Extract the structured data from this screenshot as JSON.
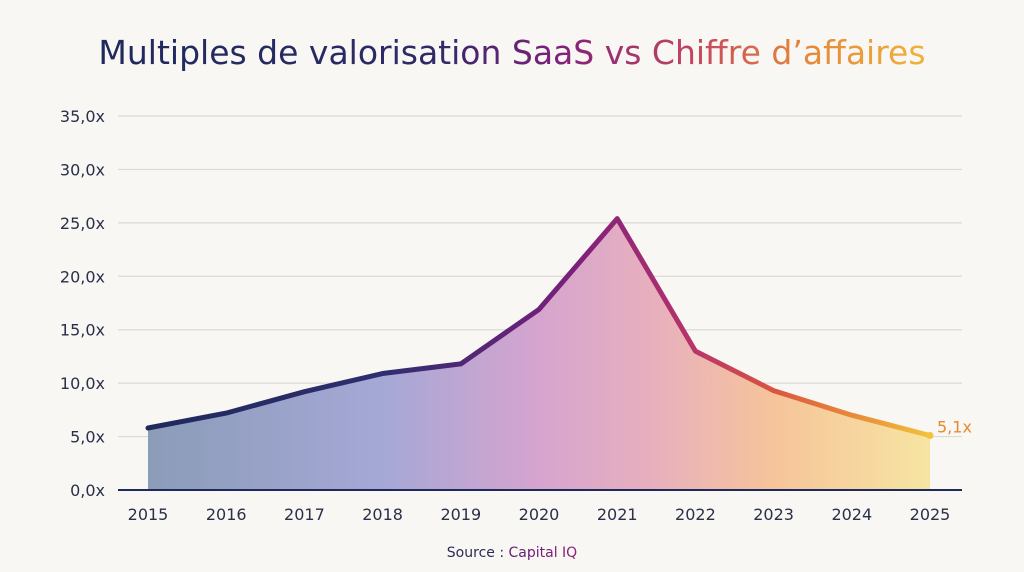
{
  "chart_data": {
    "type": "area",
    "title_parts": [
      "Multiples de valorisation ",
      "SaaS ",
      "vs ",
      "Chiffre ",
      "d’affaires"
    ],
    "title": "Multiples de valorisation SaaS vs Chiffre d’affaires",
    "xlabel": "",
    "ylabel": "",
    "categories": [
      "2015",
      "2016",
      "2017",
      "2018",
      "2019",
      "2020",
      "2021",
      "2022",
      "2023",
      "2024",
      "2025"
    ],
    "values": [
      5.8,
      7.2,
      9.2,
      10.9,
      11.8,
      16.9,
      25.4,
      13.0,
      9.3,
      7.0,
      5.1
    ],
    "ylim": [
      0,
      35
    ],
    "yticks": [
      0,
      5,
      10,
      15,
      20,
      25,
      30,
      35
    ],
    "ytick_labels": [
      "0,0x",
      "5,0x",
      "10,0x",
      "15,0x",
      "20,0x",
      "25,0x",
      "30,0x",
      "35,0x"
    ],
    "grid": true,
    "end_label": "5,1x",
    "source_prefix": "Source : ",
    "source_name": "Capital IQ",
    "colors": {
      "start": "#1f2a5c",
      "mid": "#7d1f7c",
      "red": "#c9475c",
      "orange": "#e88a3a",
      "end": "#f3c23a"
    }
  }
}
